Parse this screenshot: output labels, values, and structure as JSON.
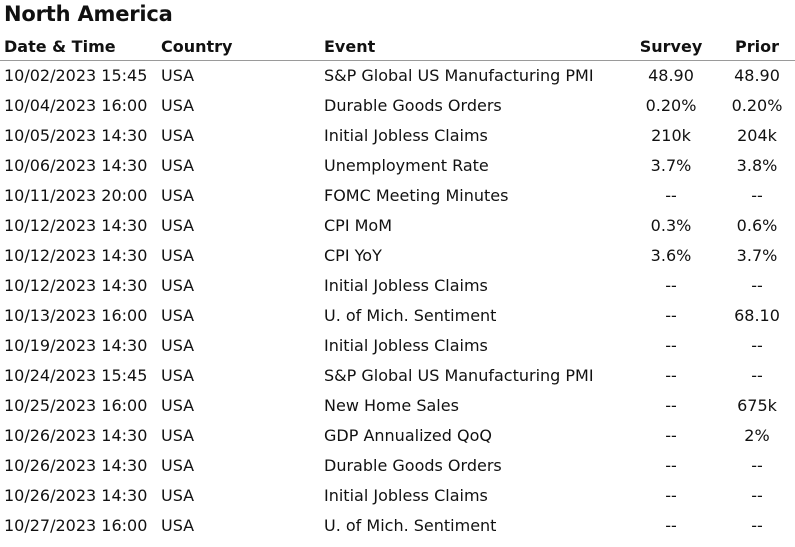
{
  "title": "North America",
  "columns": {
    "date_time": "Date & Time",
    "country": "Country",
    "event": "Event",
    "survey": "Survey",
    "prior": "Prior"
  },
  "rows": [
    {
      "date_time": "10/02/2023 15:45",
      "country": "USA",
      "event": "S&P Global US Manufacturing PMI",
      "survey": "48.90",
      "prior": "48.90"
    },
    {
      "date_time": "10/04/2023 16:00",
      "country": "USA",
      "event": "Durable Goods Orders",
      "survey": "0.20%",
      "prior": "0.20%"
    },
    {
      "date_time": "10/05/2023 14:30",
      "country": "USA",
      "event": "Initial Jobless Claims",
      "survey": "210k",
      "prior": "204k"
    },
    {
      "date_time": "10/06/2023 14:30",
      "country": "USA",
      "event": "Unemployment Rate",
      "survey": "3.7%",
      "prior": "3.8%"
    },
    {
      "date_time": "10/11/2023 20:00",
      "country": "USA",
      "event": "FOMC Meeting Minutes",
      "survey": "--",
      "prior": "--"
    },
    {
      "date_time": "10/12/2023 14:30",
      "country": "USA",
      "event": "CPI MoM",
      "survey": "0.3%",
      "prior": "0.6%"
    },
    {
      "date_time": "10/12/2023 14:30",
      "country": "USA",
      "event": "CPI YoY",
      "survey": "3.6%",
      "prior": "3.7%"
    },
    {
      "date_time": "10/12/2023 14:30",
      "country": "USA",
      "event": "Initial Jobless Claims",
      "survey": "--",
      "prior": "--"
    },
    {
      "date_time": "10/13/2023 16:00",
      "country": "USA",
      "event": "U. of Mich. Sentiment",
      "survey": "--",
      "prior": "68.10"
    },
    {
      "date_time": "10/19/2023 14:30",
      "country": "USA",
      "event": "Initial Jobless Claims",
      "survey": "--",
      "prior": "--"
    },
    {
      "date_time": "10/24/2023 15:45",
      "country": "USA",
      "event": "S&P Global US Manufacturing PMI",
      "survey": "--",
      "prior": "--"
    },
    {
      "date_time": "10/25/2023 16:00",
      "country": "USA",
      "event": "New Home Sales",
      "survey": "--",
      "prior": "675k"
    },
    {
      "date_time": "10/26/2023 14:30",
      "country": "USA",
      "event": "GDP Annualized QoQ",
      "survey": "--",
      "prior": "2%"
    },
    {
      "date_time": "10/26/2023 14:30",
      "country": "USA",
      "event": "Durable Goods Orders",
      "survey": "--",
      "prior": "--"
    },
    {
      "date_time": "10/26/2023 14:30",
      "country": "USA",
      "event": "Initial Jobless Claims",
      "survey": "--",
      "prior": "--"
    },
    {
      "date_time": "10/27/2023 16:00",
      "country": "USA",
      "event": "U. of Mich. Sentiment",
      "survey": "--",
      "prior": "--"
    }
  ]
}
